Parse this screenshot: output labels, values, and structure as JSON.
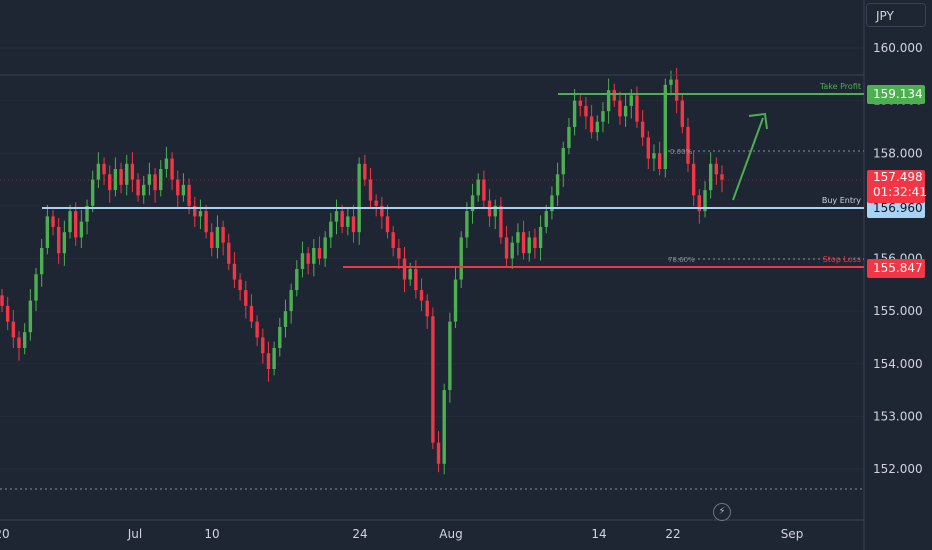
{
  "currency": "JPY",
  "colors": {
    "background": "#1e2533",
    "up": "#4caf50",
    "down": "#f23645",
    "take_profit": "#4caf50",
    "buy_entry": "#a8d3f5",
    "stop_loss": "#f23645",
    "grid": "#2a3140",
    "axis_text": "#d1d4dc"
  },
  "levels": {
    "take_profit": {
      "label": "Take Profit",
      "price": "159.134"
    },
    "buy_entry": {
      "label": "Buy Entry",
      "price": "156.960"
    },
    "stop_loss": {
      "label": "Stop Loss",
      "price": "155.847"
    },
    "fib_0": {
      "label": "0.00%"
    },
    "fib_786": {
      "label": "78.60%"
    }
  },
  "last_price": {
    "price": "157.498",
    "countdown": "01:32:41"
  },
  "icons": {
    "lightning": "lightning-icon"
  },
  "chart_data": {
    "type": "candlestick",
    "symbol": "JPY",
    "y_axis": {
      "min": 151.3,
      "max": 160.5,
      "ticks": [
        "160.000",
        "159.000",
        "158.000",
        "157.000",
        "156.000",
        "155.000",
        "154.000",
        "153.000",
        "152.000"
      ]
    },
    "x_axis": {
      "ticks": [
        "20",
        "Jul",
        "10",
        "24",
        "Aug",
        "14",
        "22",
        "Sep"
      ]
    },
    "closes": [
      155.1,
      154.8,
      154.5,
      154.3,
      154.6,
      155.2,
      155.7,
      156.2,
      156.8,
      156.6,
      156.1,
      156.5,
      156.9,
      156.4,
      156.7,
      157.0,
      157.5,
      157.8,
      157.6,
      157.3,
      157.7,
      157.4,
      157.8,
      157.5,
      157.2,
      157.4,
      157.6,
      157.3,
      157.7,
      157.9,
      157.5,
      157.2,
      157.4,
      157.0,
      156.8,
      156.9,
      156.5,
      156.2,
      156.6,
      156.3,
      155.9,
      155.6,
      155.4,
      155.1,
      154.8,
      154.5,
      154.2,
      153.9,
      154.3,
      154.7,
      155.0,
      155.4,
      155.8,
      156.1,
      155.9,
      156.2,
      156.0,
      156.4,
      156.7,
      156.9,
      156.6,
      156.8,
      156.5,
      157.8,
      157.5,
      157.1,
      157.0,
      156.8,
      156.5,
      156.2,
      156.0,
      155.6,
      155.8,
      155.4,
      155.2,
      154.9,
      152.5,
      152.1,
      153.5,
      154.8,
      155.6,
      156.4,
      156.9,
      157.2,
      157.5,
      157.1,
      156.8,
      157.0,
      156.4,
      156.0,
      156.3,
      156.5,
      156.1,
      156.4,
      156.2,
      156.6,
      156.9,
      157.2,
      157.6,
      158.1,
      158.5,
      159.0,
      158.9,
      158.7,
      158.4,
      158.6,
      158.8,
      159.2,
      159.0,
      158.7,
      158.9,
      159.1,
      158.6,
      158.3,
      157.9,
      158.0,
      157.7,
      159.3,
      159.4,
      159.0,
      158.5,
      157.8,
      157.2,
      156.9,
      157.3,
      157.8,
      157.6,
      157.5
    ],
    "annotations": [
      "Take Profit",
      "Buy Entry",
      "Stop Loss",
      "0.00%",
      "78.60%"
    ]
  }
}
